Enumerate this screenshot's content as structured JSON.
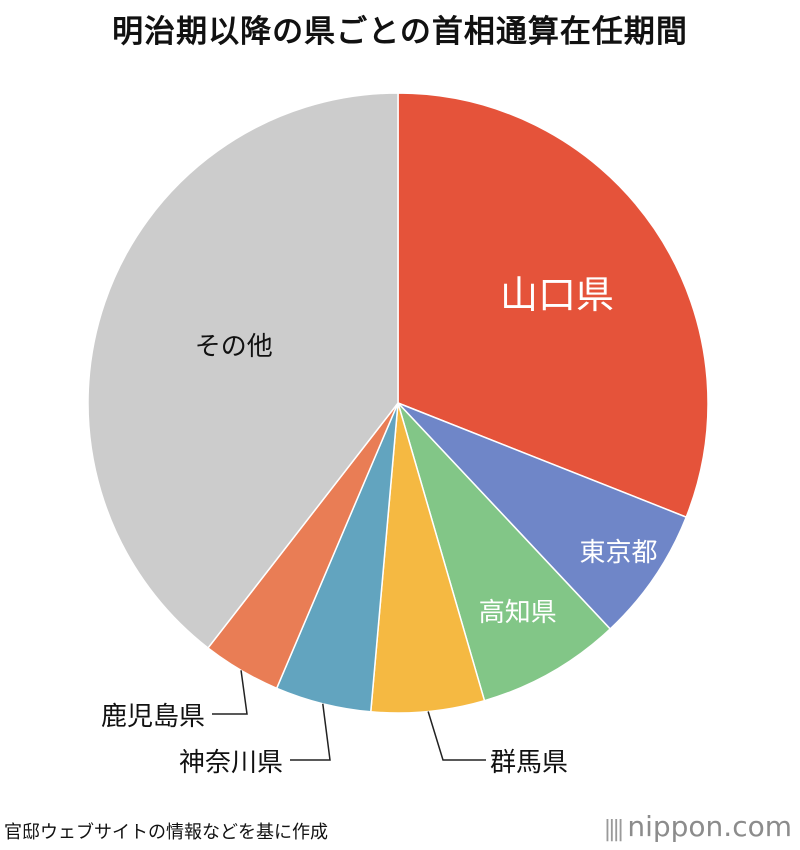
{
  "chart_data": {
    "type": "pie",
    "title": "明治期以降の県ごとの首相通算在任期間",
    "slices": [
      {
        "label": "山口県",
        "value": 31.0,
        "color": "#e5533a",
        "label_color": "#ffffff",
        "label_style": "inside-large"
      },
      {
        "label": "東京都",
        "value": 7.0,
        "color": "#6f86c8",
        "label_color": "#ffffff",
        "label_style": "inside"
      },
      {
        "label": "高知県",
        "value": 7.5,
        "color": "#82c687",
        "label_color": "#ffffff",
        "label_style": "inside"
      },
      {
        "label": "群馬県",
        "value": 5.9,
        "color": "#f5b942",
        "label_color": "#111111",
        "label_style": "callout"
      },
      {
        "label": "神奈川県",
        "value": 5.0,
        "color": "#62a4bf",
        "label_color": "#111111",
        "label_style": "callout"
      },
      {
        "label": "鹿児島県",
        "value": 4.1,
        "color": "#e97d55",
        "label_color": "#111111",
        "label_style": "callout"
      },
      {
        "label": "その他",
        "value": 39.5,
        "color": "#cccccc",
        "label_color": "#111111",
        "label_style": "inside"
      }
    ],
    "start": "12 o'clock",
    "direction": "clockwise"
  },
  "footer": {
    "source": "官邸ウェブサイトの情報などを基に作成",
    "brand": "nippon.com",
    "brand_bars": "||||"
  }
}
